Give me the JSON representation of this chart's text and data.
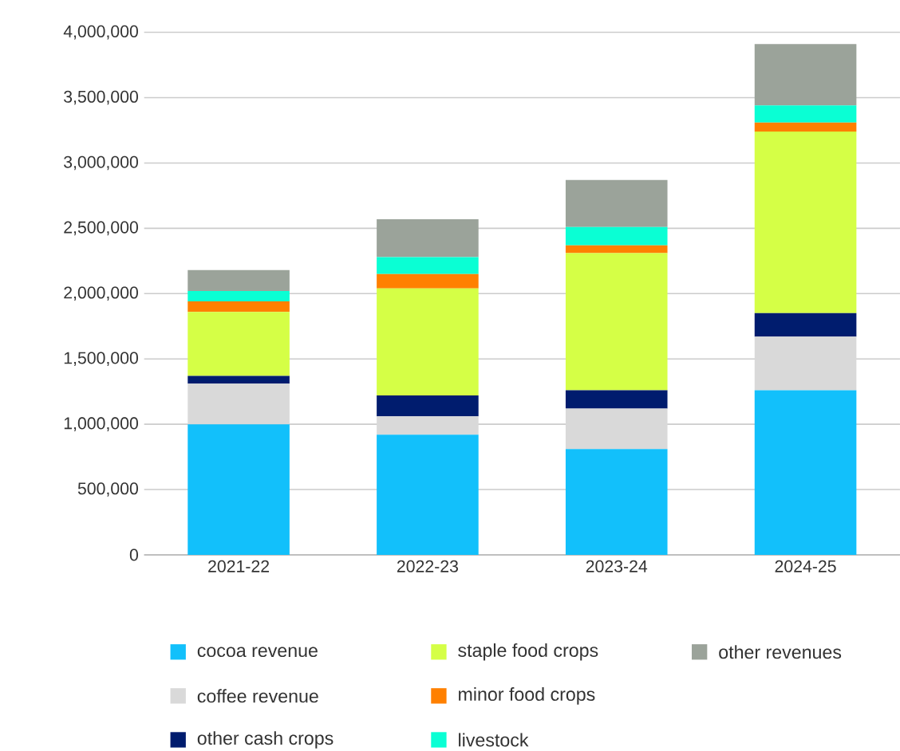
{
  "chart_data": {
    "type": "bar",
    "stacked": true,
    "categories": [
      "2021-22",
      "2022-23",
      "2023-24",
      "2024-25"
    ],
    "series": [
      {
        "name": "cocoa revenue",
        "color": "#12c0fb",
        "values": [
          1000000,
          920000,
          810000,
          1260000
        ]
      },
      {
        "name": "coffee revenue",
        "color": "#d9d9d9",
        "values": [
          310000,
          140000,
          310000,
          410000
        ]
      },
      {
        "name": "other cash crops",
        "color": "#001c6e",
        "values": [
          60000,
          160000,
          140000,
          180000
        ]
      },
      {
        "name": "staple food crops",
        "color": "#d5ff46",
        "values": [
          490000,
          820000,
          1050000,
          1390000
        ]
      },
      {
        "name": "minor food crops",
        "color": "#ff8000",
        "values": [
          80000,
          110000,
          60000,
          70000
        ]
      },
      {
        "name": "livestock",
        "color": "#0affd4",
        "values": [
          80000,
          130000,
          140000,
          130000
        ]
      },
      {
        "name": "other revenues",
        "color": "#9ba39a",
        "values": [
          160000,
          290000,
          360000,
          470000
        ]
      }
    ],
    "ylim": [
      0,
      4000000
    ],
    "yticks": [
      {
        "value": 0,
        "label": "0"
      },
      {
        "value": 500000,
        "label": "500,000"
      },
      {
        "value": 1000000,
        "label": "1,000,000"
      },
      {
        "value": 1500000,
        "label": "1,500,000"
      },
      {
        "value": 2000000,
        "label": "2,000,000"
      },
      {
        "value": 2500000,
        "label": "2,500,000"
      },
      {
        "value": 3000000,
        "label": "3,000,000"
      },
      {
        "value": 3500000,
        "label": "3,500,000"
      },
      {
        "value": 4000000,
        "label": "4,000,000"
      }
    ],
    "grid": "y",
    "legend": "bottom"
  }
}
